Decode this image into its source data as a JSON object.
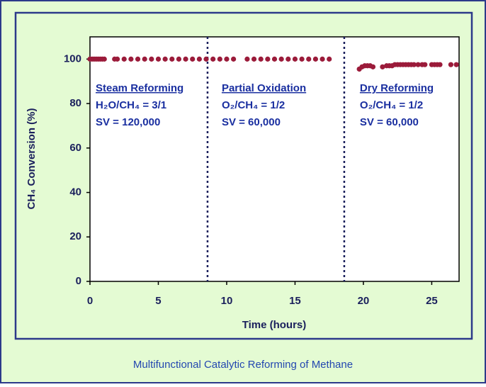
{
  "chart_data": {
    "type": "scatter",
    "xlabel": "Time (hours)",
    "ylabel": "CH₄ Conversion (%)",
    "caption": "Multifunctional Catalytic Reforming of Methane",
    "color": "#9b1b3a",
    "xlim": [
      0,
      27
    ],
    "ylim": [
      0,
      110
    ],
    "xticks": [
      0,
      5,
      10,
      15,
      20,
      25
    ],
    "yticks": [
      0,
      20,
      40,
      60,
      80,
      100
    ],
    "vlines": [
      8.6,
      18.6
    ],
    "annotations": [
      {
        "title": "Steam Reforming",
        "lines": [
          "H₂O/CH₄ = 3/1",
          "SV = 120,000"
        ]
      },
      {
        "title": "Partial Oxidation",
        "lines": [
          "O₂/CH₄ = 1/2",
          "SV = 60,000"
        ]
      },
      {
        "title": "Dry Reforming",
        "lines": [
          "O₂/CH₄ = 1/2",
          "SV = 60,000"
        ]
      }
    ],
    "x": [
      0,
      0.15,
      0.3,
      0.45,
      0.6,
      0.75,
      0.9,
      1.05,
      1.8,
      2.0,
      2.5,
      3.0,
      3.5,
      4.0,
      4.5,
      5.0,
      5.5,
      6.0,
      6.5,
      7.0,
      7.5,
      8.0,
      8.5,
      9.0,
      9.5,
      10.0,
      10.5,
      11.5,
      12.0,
      12.5,
      13.0,
      13.5,
      14.0,
      14.5,
      15.0,
      15.5,
      16.0,
      16.5,
      17.0,
      17.5,
      19.7,
      19.9,
      20.1,
      20.3,
      20.5,
      20.7,
      21.4,
      21.7,
      21.9,
      22.1,
      22.3,
      22.5,
      22.7,
      22.9,
      23.1,
      23.3,
      23.5,
      23.7,
      24.0,
      24.3,
      24.5,
      25.0,
      25.2,
      25.4,
      25.6,
      26.4,
      26.8
    ],
    "values": [
      100,
      100,
      100,
      100,
      100,
      100,
      100,
      100,
      100,
      100,
      100,
      100,
      100,
      100,
      100,
      100,
      100,
      100,
      100,
      100,
      100,
      100,
      100,
      100,
      100,
      100,
      100,
      100,
      100,
      100,
      100,
      100,
      100,
      100,
      100,
      100,
      100,
      100,
      100,
      100,
      95.5,
      96.5,
      97,
      97,
      97,
      96.5,
      96.5,
      97,
      97,
      97,
      97.5,
      97.5,
      97.5,
      97.5,
      97.5,
      97.5,
      97.5,
      97.5,
      97.5,
      97.5,
      97.5,
      97.5,
      97.5,
      97.5,
      97.5,
      97.5,
      97.5
    ]
  }
}
